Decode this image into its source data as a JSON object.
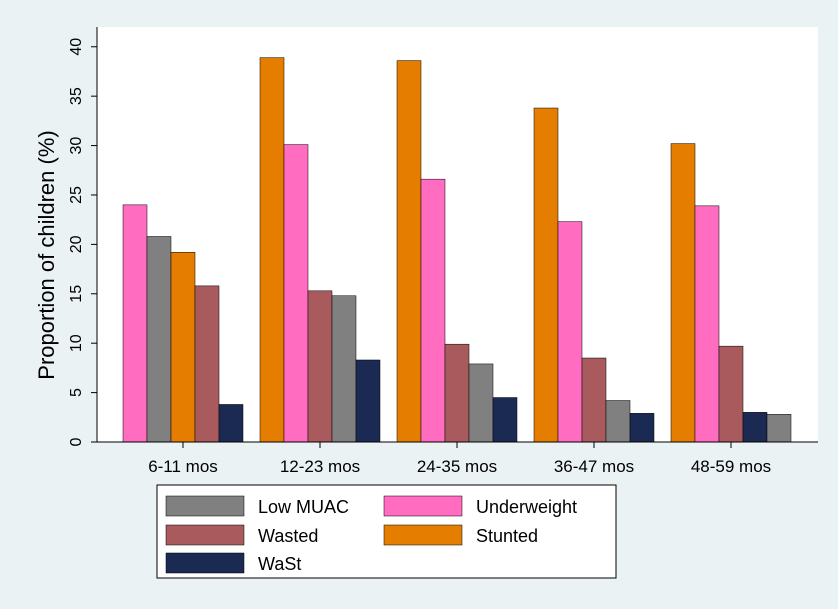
{
  "chart_data": {
    "type": "bar",
    "title": "",
    "xlabel": "",
    "ylabel": "Proportion  of children (%)",
    "ylim": [
      0,
      42
    ],
    "yticks": [
      0,
      5,
      10,
      15,
      20,
      25,
      30,
      35,
      40
    ],
    "grid": false,
    "legend_position": "bottom",
    "categories": [
      "6-11 mos",
      "12-23 mos",
      "24-35 mos",
      "36-47 mos",
      "48-59 mos"
    ],
    "series": [
      {
        "name": "Low MUAC",
        "color": "#808080"
      },
      {
        "name": "Underweight",
        "color": "#ff6cc0"
      },
      {
        "name": "Wasted",
        "color": "#a85a5d"
      },
      {
        "name": "Stunted",
        "color": "#e57e00"
      },
      {
        "name": "WaSt",
        "color": "#1a2a52"
      }
    ],
    "groups": [
      {
        "category": "6-11 mos",
        "bars": [
          {
            "series": "Underweight",
            "value": 24.0
          },
          {
            "series": "Low MUAC",
            "value": 20.8
          },
          {
            "series": "Stunted",
            "value": 19.2
          },
          {
            "series": "Wasted",
            "value": 15.8
          },
          {
            "series": "WaSt",
            "value": 3.8
          }
        ]
      },
      {
        "category": "12-23 mos",
        "bars": [
          {
            "series": "Stunted",
            "value": 38.9
          },
          {
            "series": "Underweight",
            "value": 30.1
          },
          {
            "series": "Wasted",
            "value": 15.3
          },
          {
            "series": "Low MUAC",
            "value": 14.8
          },
          {
            "series": "WaSt",
            "value": 8.3
          }
        ]
      },
      {
        "category": "24-35 mos",
        "bars": [
          {
            "series": "Stunted",
            "value": 38.6
          },
          {
            "series": "Underweight",
            "value": 26.6
          },
          {
            "series": "Wasted",
            "value": 9.9
          },
          {
            "series": "Low MUAC",
            "value": 7.9
          },
          {
            "series": "WaSt",
            "value": 4.5
          }
        ]
      },
      {
        "category": "36-47 mos",
        "bars": [
          {
            "series": "Stunted",
            "value": 33.8
          },
          {
            "series": "Underweight",
            "value": 22.3
          },
          {
            "series": "Wasted",
            "value": 8.5
          },
          {
            "series": "Low MUAC",
            "value": 4.2
          },
          {
            "series": "WaSt",
            "value": 2.9
          }
        ]
      },
      {
        "category": "48-59 mos",
        "bars": [
          {
            "series": "Stunted",
            "value": 30.2
          },
          {
            "series": "Underweight",
            "value": 23.9
          },
          {
            "series": "Wasted",
            "value": 9.7
          },
          {
            "series": "WaSt",
            "value": 3.0
          },
          {
            "series": "Low MUAC",
            "value": 2.8
          }
        ]
      }
    ]
  }
}
